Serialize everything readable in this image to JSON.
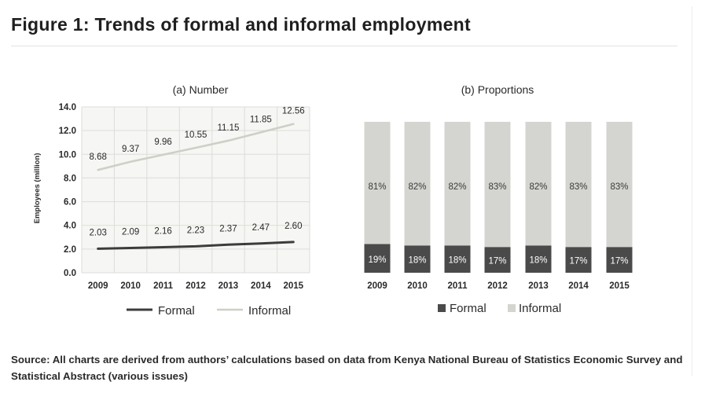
{
  "figure": {
    "title": "Figure 1: Trends of formal and informal employment",
    "source": "Source: All charts are derived from authors’ calculations based on data from Kenya National Bureau of Statistics Economic Survey and Statistical Abstract (various issues)"
  },
  "chart_data": [
    {
      "type": "line",
      "title": "(a) Number",
      "xlabel": "",
      "ylabel": "Employees (million)",
      "x": [
        "2009",
        "2010",
        "2011",
        "2012",
        "2013",
        "2014",
        "2015"
      ],
      "ylim": [
        0,
        14
      ],
      "yticks": [
        "0.0",
        "2.0",
        "4.0",
        "6.0",
        "8.0",
        "10.0",
        "12.0",
        "14.0"
      ],
      "grid": true,
      "series": [
        {
          "name": "Formal",
          "values": [
            2.03,
            2.09,
            2.16,
            2.23,
            2.37,
            2.47,
            2.6
          ],
          "labels": [
            "2.03",
            "2.09",
            "2.16",
            "2.23",
            "2.37",
            "2.47",
            "2.60"
          ],
          "color": "#3c3c3c"
        },
        {
          "name": "Informal",
          "values": [
            8.68,
            9.37,
            9.96,
            10.55,
            11.15,
            11.85,
            12.56
          ],
          "labels": [
            "8.68",
            "9.37",
            "9.96",
            "10.55",
            "11.15",
            "11.85",
            "12.56"
          ],
          "color": "#cfcfc8"
        }
      ],
      "legend": "bottom"
    },
    {
      "type": "bar",
      "stacked": true,
      "title": "(b) Proportions",
      "categories": [
        "2009",
        "2010",
        "2011",
        "2012",
        "2013",
        "2014",
        "2015"
      ],
      "ylim": [
        0,
        100
      ],
      "series": [
        {
          "name": "Formal",
          "values": [
            19,
            18,
            18,
            17,
            18,
            17,
            17
          ],
          "labels": [
            "19%",
            "18%",
            "18%",
            "17%",
            "18%",
            "17%",
            "17%"
          ],
          "color": "#4a4a4a"
        },
        {
          "name": "Informal",
          "values": [
            81,
            82,
            82,
            83,
            82,
            83,
            83
          ],
          "labels": [
            "81%",
            "82%",
            "82%",
            "83%",
            "82%",
            "83%",
            "83%"
          ],
          "color": "#d4d4d0"
        }
      ],
      "legend": "bottom"
    }
  ]
}
